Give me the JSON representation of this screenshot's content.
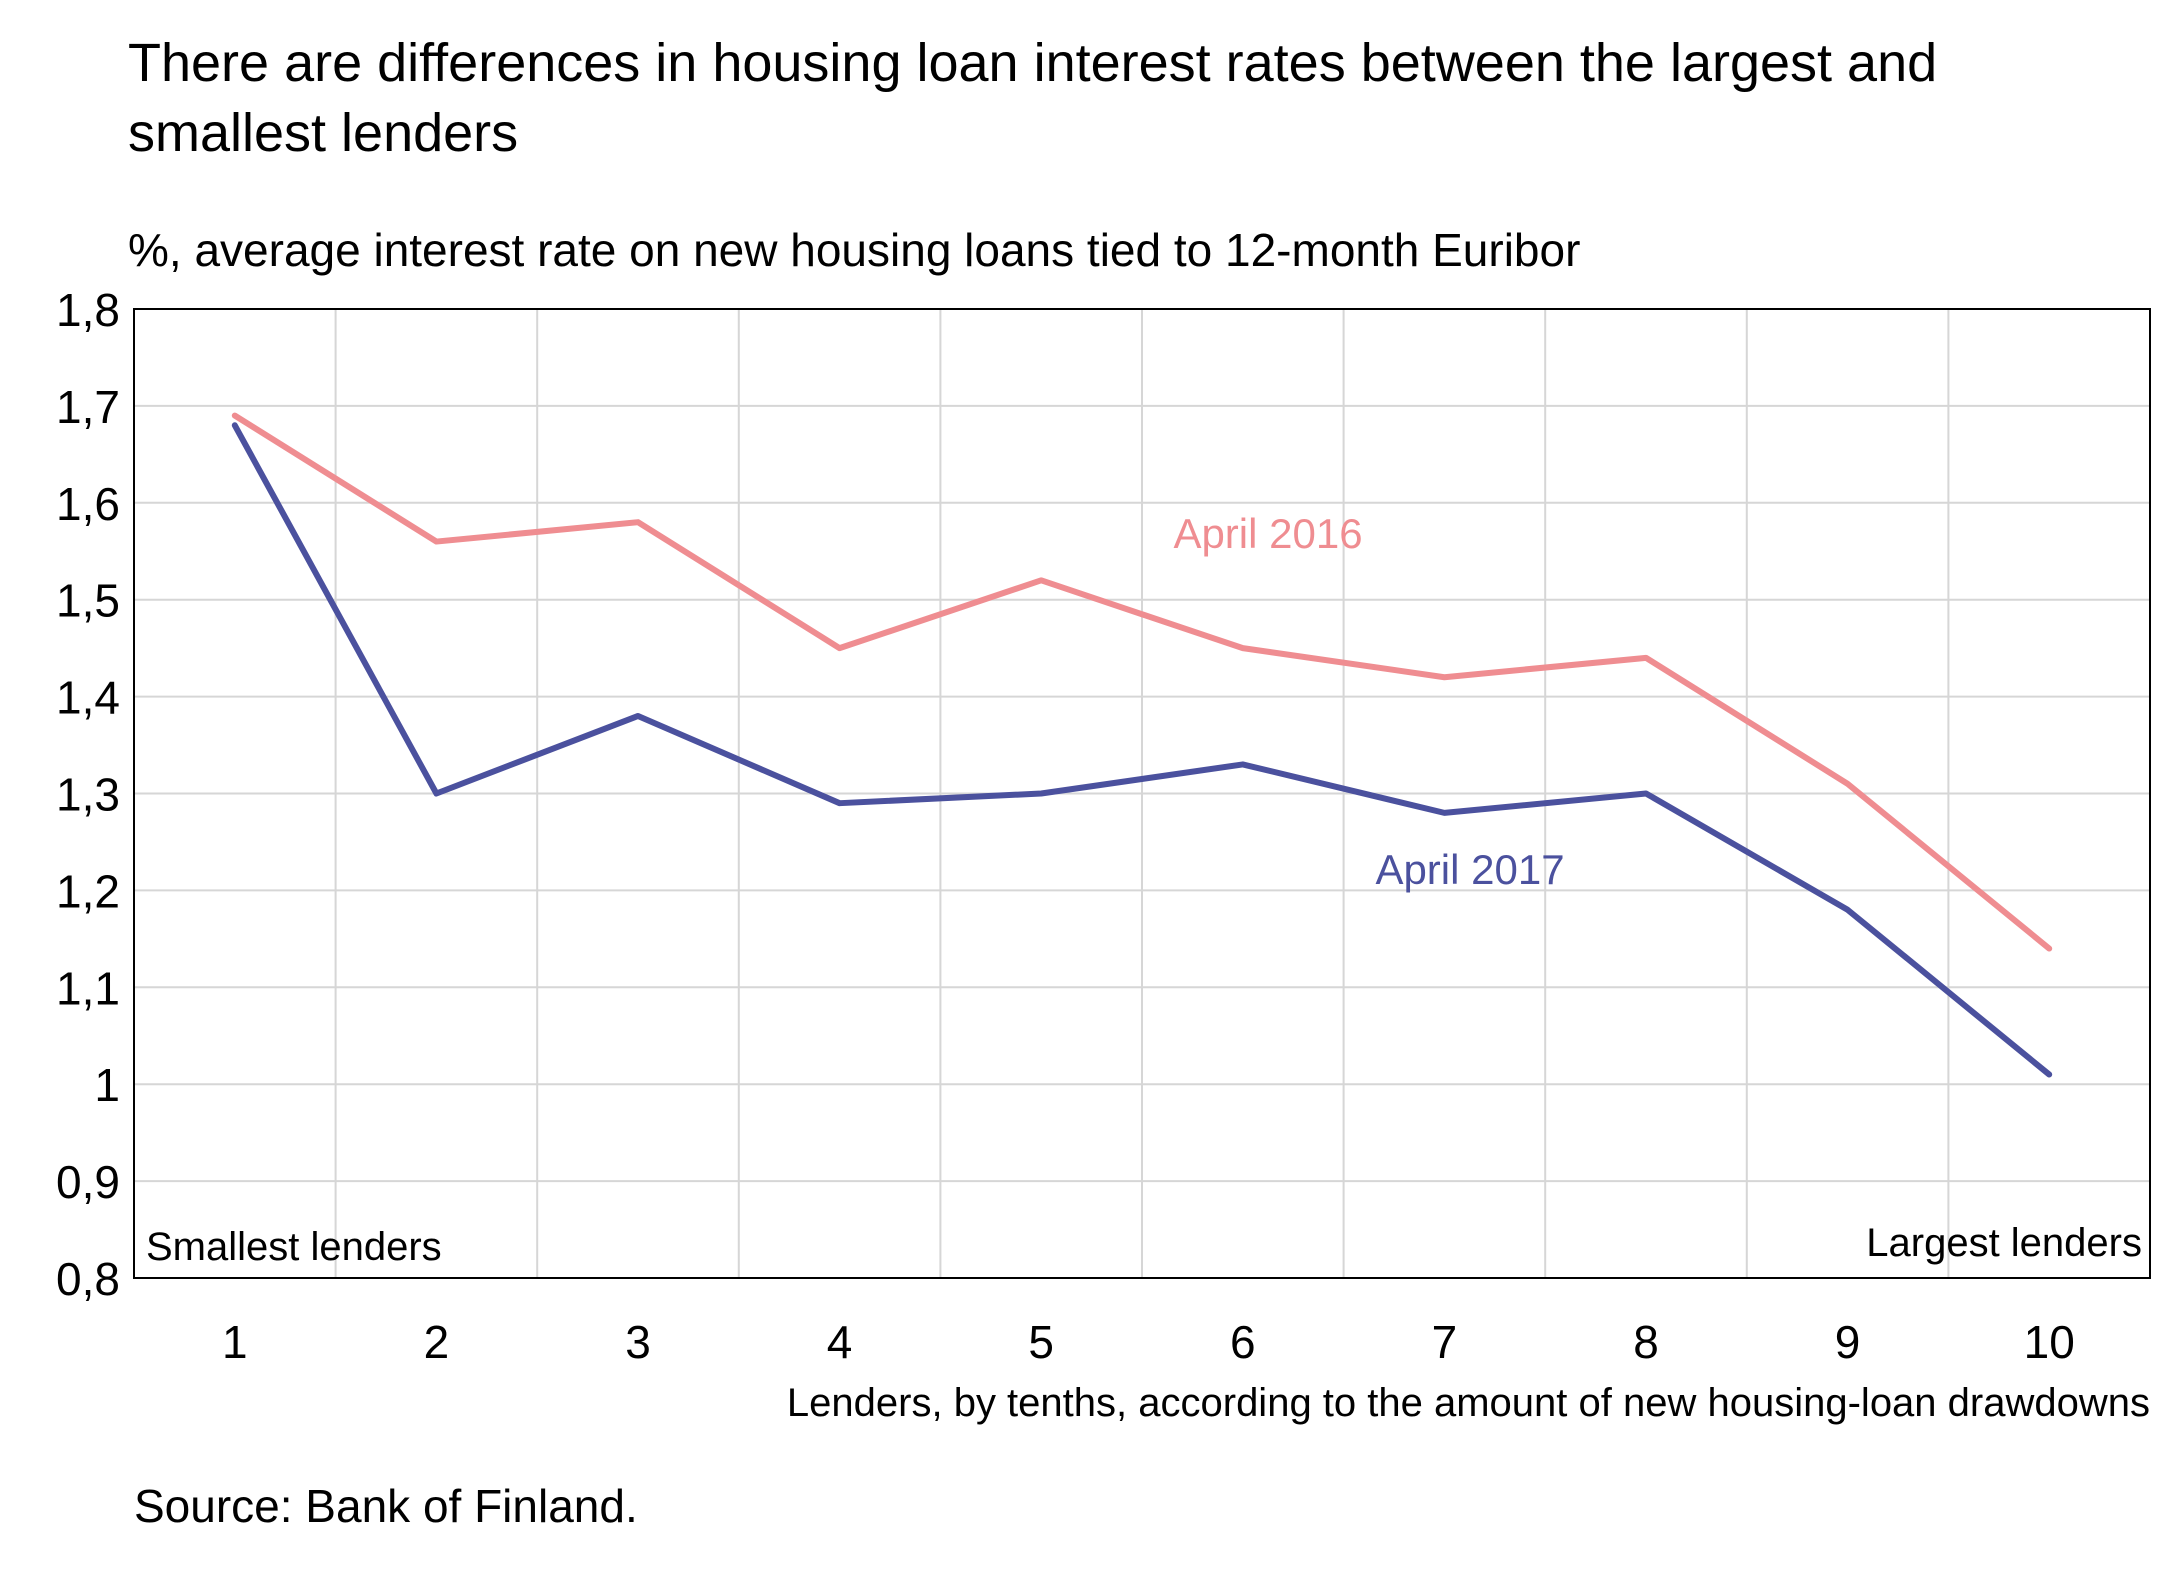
{
  "title": "There are differences in housing loan interest rates between the largest and smallest lenders",
  "subtitle": "%, average interest rate on new housing loans tied to 12-month Euribor",
  "source": "Source: Bank of Finland.",
  "colors": {
    "april_2016": "#ef8d91",
    "april_2017": "#4b519e",
    "grid": "#d6d6d6",
    "axis": "#000000"
  },
  "chart_data": {
    "type": "line",
    "x": [
      1,
      2,
      3,
      4,
      5,
      6,
      7,
      8,
      9,
      10
    ],
    "series": [
      {
        "name": "April 2016",
        "values": [
          1.69,
          1.56,
          1.58,
          1.45,
          1.52,
          1.45,
          1.42,
          1.44,
          1.31,
          1.14
        ]
      },
      {
        "name": "April 2017",
        "values": [
          1.68,
          1.3,
          1.38,
          1.29,
          1.3,
          1.33,
          1.28,
          1.3,
          1.18,
          1.01
        ]
      }
    ],
    "xlabel": "Lenders, by tenths, according to the amount of new housing-loan drawdowns",
    "ylabel": "",
    "ylim": [
      0.8,
      1.8
    ],
    "yticks": [
      "0,8",
      "0,9",
      "1",
      "1,1",
      "1,2",
      "1,3",
      "1,4",
      "1,5",
      "1,6",
      "1,7",
      "1,8"
    ],
    "xticks": [
      "1",
      "2",
      "3",
      "4",
      "5",
      "6",
      "7",
      "8",
      "9",
      "10"
    ],
    "annotations": {
      "left": "Smallest lenders",
      "right": "Largest lenders"
    },
    "grid": true,
    "legend": "inline labels"
  }
}
